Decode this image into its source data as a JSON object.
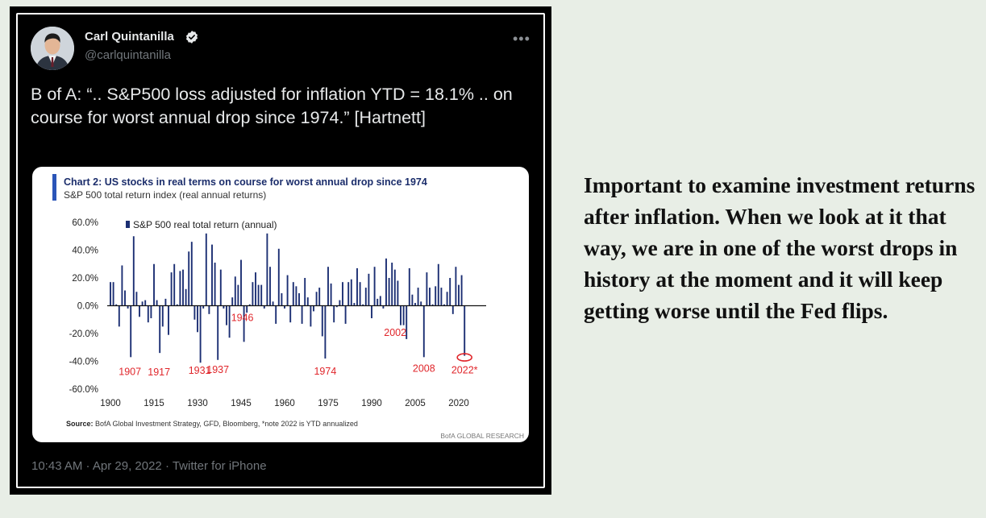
{
  "tweet": {
    "author_name": "Carl Quintanilla",
    "author_handle": "@carlquintanilla",
    "text": "B of A: “.. S&P500 loss adjusted for inflation YTD = 18.1% .. on course for worst annual drop since 1974.” [Hartnett]",
    "timestamp": "10:43 AM · Apr 29, 2022 · Twitter for iPhone",
    "icons": {
      "avatar": "avatar",
      "verified": "verified-badge-icon",
      "more": "more-options-icon"
    }
  },
  "side_note": "Important to examine investment returns after inflation. When we look at it that way, we are in one of the worst drops in history at the moment and it will keep getting worse until the Fed flips.",
  "colors": {
    "bar": "#1c2f73",
    "annotation": "#e0262b",
    "accent": "#2b55b8"
  },
  "chart_data": {
    "type": "bar",
    "title": "Chart 2: US stocks in real terms on course for worst annual drop since 1974",
    "subtitle": "S&P 500 total return index (real annual returns)",
    "legend": "S&P 500 real total return (annual)",
    "legend_position": "top-left",
    "source_label": "Source:",
    "source": "BofA Global Investment Strategy, GFD, Bloomberg, *note 2022  is YTD annualized",
    "credit": "BofA GLOBAL RESEARCH",
    "ylim": [
      -60,
      60
    ],
    "y_ticks": [
      "60.0%",
      "40.0%",
      "20.0%",
      "0.0%",
      "-20.0%",
      "-40.0%",
      "-60.0%"
    ],
    "y_tick_values": [
      60,
      40,
      20,
      0,
      -20,
      -40,
      -60
    ],
    "x_ticks": [
      "1900",
      "1915",
      "1930",
      "1945",
      "1960",
      "1975",
      "1990",
      "2005",
      "2020"
    ],
    "x_tick_values": [
      1900,
      1915,
      1930,
      1945,
      1960,
      1975,
      1990,
      2005,
      2020
    ],
    "grid": false,
    "x": [
      1900,
      1901,
      1902,
      1903,
      1904,
      1905,
      1906,
      1907,
      1908,
      1909,
      1910,
      1911,
      1912,
      1913,
      1914,
      1915,
      1916,
      1917,
      1918,
      1919,
      1920,
      1921,
      1922,
      1923,
      1924,
      1925,
      1926,
      1927,
      1928,
      1929,
      1930,
      1931,
      1932,
      1933,
      1934,
      1935,
      1936,
      1937,
      1938,
      1939,
      1940,
      1941,
      1942,
      1943,
      1944,
      1945,
      1946,
      1947,
      1948,
      1949,
      1950,
      1951,
      1952,
      1953,
      1954,
      1955,
      1956,
      1957,
      1958,
      1959,
      1960,
      1961,
      1962,
      1963,
      1964,
      1965,
      1966,
      1967,
      1968,
      1969,
      1970,
      1971,
      1972,
      1973,
      1974,
      1975,
      1976,
      1977,
      1978,
      1979,
      1980,
      1981,
      1982,
      1983,
      1984,
      1985,
      1986,
      1987,
      1988,
      1989,
      1990,
      1991,
      1992,
      1993,
      1994,
      1995,
      1996,
      1997,
      1998,
      1999,
      2000,
      2001,
      2002,
      2003,
      2004,
      2005,
      2006,
      2007,
      2008,
      2009,
      2010,
      2011,
      2012,
      2013,
      2014,
      2015,
      2016,
      2017,
      2018,
      2019,
      2020,
      2021,
      2022
    ],
    "values": [
      17,
      17,
      1,
      -15,
      29,
      11,
      -2,
      -37,
      50,
      10,
      -8,
      3,
      4,
      -12,
      -9,
      30,
      4,
      -34,
      -15,
      5,
      -21,
      24,
      30,
      1,
      25,
      26,
      12,
      39,
      46,
      -10,
      -19,
      -41,
      -2,
      52,
      -6,
      44,
      31,
      -39,
      26,
      -2,
      -14,
      -23,
      6,
      21,
      15,
      33,
      -26,
      -5,
      1,
      17,
      24,
      15,
      15,
      -2,
      52,
      28,
      3,
      -13,
      41,
      9,
      -2,
      22,
      -12,
      17,
      14,
      9,
      -13,
      20,
      6,
      -15,
      -4,
      10,
      13,
      -22,
      -38,
      28,
      16,
      -12,
      -1,
      4,
      17,
      -13,
      17,
      19,
      2,
      27,
      17,
      1,
      13,
      23,
      -9,
      28,
      5,
      7,
      -2,
      34,
      20,
      31,
      26,
      18,
      -14,
      -14,
      -24,
      27,
      8,
      2,
      13,
      3,
      -37,
      24,
      13,
      1,
      14,
      30,
      13,
      1,
      10,
      20,
      -6,
      28,
      15,
      22,
      -36
    ],
    "annotations": [
      {
        "label": "1907",
        "year": 1907
      },
      {
        "label": "1917",
        "year": 1917
      },
      {
        "label": "1931",
        "year": 1931
      },
      {
        "label": "1937",
        "year": 1937
      },
      {
        "label": "1946",
        "year": 1946
      },
      {
        "label": "1974",
        "year": 1974
      },
      {
        "label": "2002",
        "year": 2002
      },
      {
        "label": "2008",
        "year": 2008
      },
      {
        "label": "2022*",
        "year": 2022
      }
    ]
  }
}
